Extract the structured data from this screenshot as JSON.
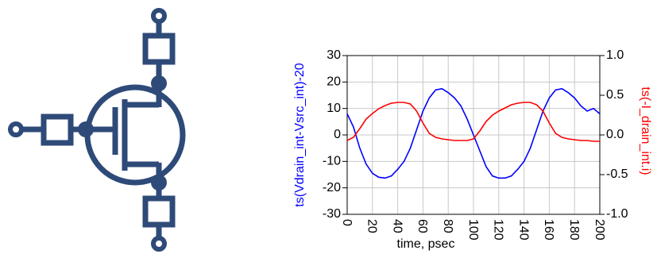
{
  "chart_data": {
    "type": "line",
    "xlabel": "time, psec",
    "ylabel": "ts(Vdrain_int-Vsrc_int)-20",
    "y2label": "ts(-I_drain_int.i)",
    "x": [
      0,
      5,
      10,
      15,
      20,
      25,
      30,
      35,
      40,
      45,
      50,
      55,
      60,
      65,
      70,
      75,
      80,
      85,
      90,
      95,
      100,
      105,
      110,
      115,
      120,
      125,
      130,
      135,
      140,
      145,
      150,
      155,
      160,
      165,
      170,
      175,
      180,
      185,
      190,
      195,
      200
    ],
    "series": [
      {
        "name": "ts(Vdrain_int-Vsrc_int)-20",
        "color": "#0000ff",
        "values": [
          8,
          3,
          -5,
          -11,
          -14.5,
          -16,
          -16.3,
          -15.5,
          -13,
          -10,
          -5,
          2,
          9,
          14,
          17,
          17.5,
          16,
          14,
          11,
          6,
          0,
          -6,
          -12,
          -15.5,
          -16.3,
          -16.3,
          -15.5,
          -13,
          -10,
          -5,
          2,
          9,
          14,
          17,
          17.5,
          16,
          14,
          11,
          9,
          10,
          8
        ]
      },
      {
        "name": "ts(-I_drain_int.i)",
        "color": "#ff0000",
        "axis": "y2",
        "values": [
          -0.07,
          -0.03,
          0.08,
          0.2,
          0.27,
          0.33,
          0.37,
          0.4,
          0.41,
          0.41,
          0.39,
          0.3,
          0.15,
          0.02,
          -0.03,
          -0.05,
          -0.06,
          -0.07,
          -0.07,
          -0.07,
          -0.05,
          0.05,
          0.17,
          0.25,
          0.3,
          0.34,
          0.38,
          0.4,
          0.41,
          0.41,
          0.38,
          0.3,
          0.15,
          0.02,
          -0.03,
          -0.05,
          -0.06,
          -0.07,
          -0.07,
          -0.08,
          -0.08
        ]
      }
    ],
    "xlim": [
      0,
      200
    ],
    "xticks": [
      0,
      20,
      40,
      60,
      80,
      100,
      120,
      140,
      160,
      180,
      200
    ],
    "ylim": [
      -30,
      30
    ],
    "yticks": [
      -30,
      -20,
      -10,
      0,
      10,
      20,
      30
    ],
    "y2lim": [
      -1,
      1
    ],
    "y2ticks": [
      {
        "value": -1,
        "label": "-1.0"
      },
      {
        "value": -0.5,
        "label": "-0.5"
      },
      {
        "value": 0,
        "label": "0.0"
      },
      {
        "value": 0.5,
        "label": "0.5"
      },
      {
        "value": 1,
        "label": "1.0"
      }
    ],
    "grid": true
  }
}
